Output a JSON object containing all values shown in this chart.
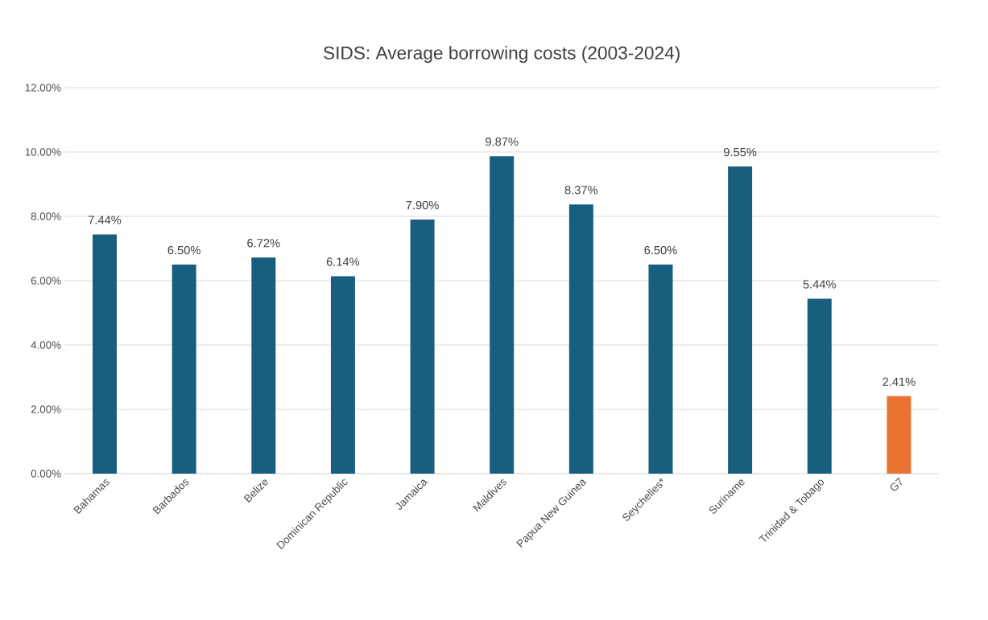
{
  "chart_data": {
    "type": "bar",
    "title": "SIDS: Average borrowing costs (2003-2024)",
    "categories": [
      "Bahamas",
      "Barbados",
      "Belize",
      "Dominican Republic",
      "Jamaica",
      "Maldives",
      "Papua New Guinea",
      "Seychelles*",
      "Suriname",
      "Trinidad & Tobago",
      "G7"
    ],
    "values": [
      7.44,
      6.5,
      6.72,
      6.14,
      7.9,
      9.87,
      8.37,
      6.5,
      9.55,
      5.44,
      2.41
    ],
    "value_labels": [
      "7.44%",
      "6.50%",
      "6.72%",
      "6.14%",
      "7.90%",
      "9.87%",
      "8.37%",
      "6.50%",
      "9.55%",
      "5.44%",
      "2.41%"
    ],
    "colors": [
      "#175e7f",
      "#175e7f",
      "#175e7f",
      "#175e7f",
      "#175e7f",
      "#175e7f",
      "#175e7f",
      "#175e7f",
      "#175e7f",
      "#175e7f",
      "#e97432"
    ],
    "ylim": [
      0,
      12
    ],
    "yticks": [
      {
        "value": 0,
        "label": "0.00%"
      },
      {
        "value": 2,
        "label": "2.00%"
      },
      {
        "value": 4,
        "label": "4.00%"
      },
      {
        "value": 6,
        "label": "6.00%"
      },
      {
        "value": 8,
        "label": "8.00%"
      },
      {
        "value": 10,
        "label": "10.00%"
      },
      {
        "value": 12,
        "label": "12.00%"
      }
    ],
    "grid": "y"
  }
}
